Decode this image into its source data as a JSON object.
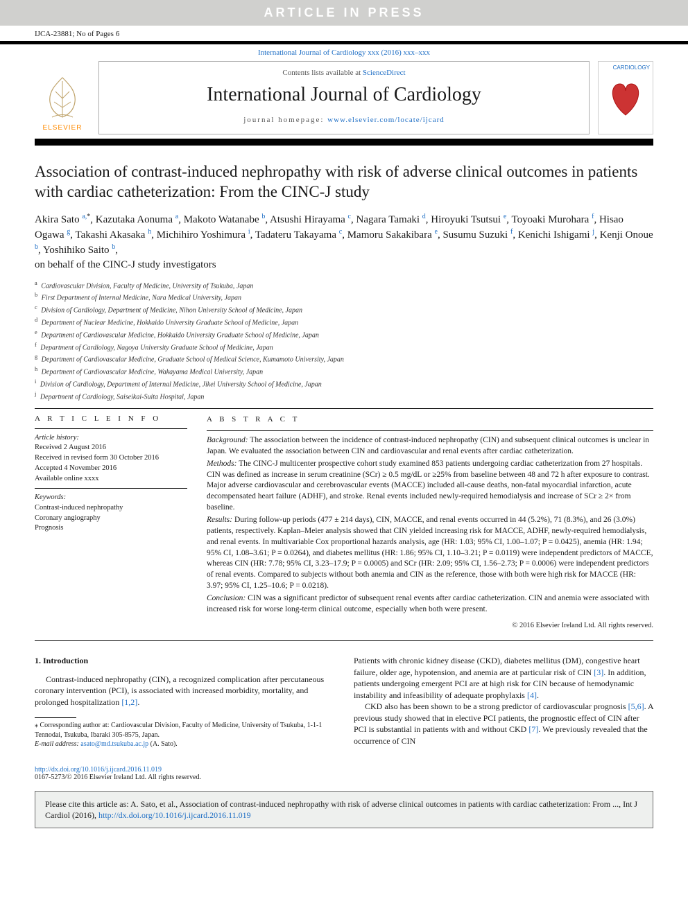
{
  "banner": "ARTICLE IN PRESS",
  "header_left": "IJCA-23881; No of Pages 6",
  "journal_ref_line": "International Journal of Cardiology xxx (2016) xxx–xxx",
  "masthead": {
    "contents_prefix": "Contents lists available at ",
    "contents_link": "ScienceDirect",
    "journal_title": "International Journal of Cardiology",
    "homepage_prefix": "journal homepage: ",
    "homepage_url": "www.elsevier.com/locate/ijcard",
    "publisher_logo_text": "ELSEVIER",
    "cover_label": "CARDIOLOGY"
  },
  "article": {
    "title": "Association of contrast-induced nephropathy with risk of adverse clinical outcomes in patients with cardiac catheterization: From the CINC-J study",
    "authors_html_parts": [
      {
        "name": "Akira Sato",
        "sup": "a,",
        "star": true
      },
      {
        "name": "Kazutaka Aonuma",
        "sup": "a"
      },
      {
        "name": "Makoto Watanabe",
        "sup": "b"
      },
      {
        "name": "Atsushi Hirayama",
        "sup": "c"
      },
      {
        "name": "Nagara Tamaki",
        "sup": "d"
      },
      {
        "name": "Hiroyuki Tsutsui",
        "sup": "e"
      },
      {
        "name": "Toyoaki Murohara",
        "sup": "f"
      },
      {
        "name": "Hisao Ogawa",
        "sup": "g"
      },
      {
        "name": "Takashi Akasaka",
        "sup": "h"
      },
      {
        "name": "Michihiro Yoshimura",
        "sup": "i"
      },
      {
        "name": "Tadateru Takayama",
        "sup": "c"
      },
      {
        "name": "Mamoru Sakakibara",
        "sup": "e"
      },
      {
        "name": "Susumu Suzuki",
        "sup": "f"
      },
      {
        "name": "Kenichi Ishigami",
        "sup": "j"
      },
      {
        "name": "Kenji Onoue",
        "sup": "b"
      },
      {
        "name": "Yoshihiko Saito",
        "sup": "b"
      }
    ],
    "authors_trailer": "on behalf of the CINC-J study investigators",
    "affiliations": [
      {
        "key": "a",
        "text": "Cardiovascular Division, Faculty of Medicine, University of Tsukuba, Japan"
      },
      {
        "key": "b",
        "text": "First Department of Internal Medicine, Nara Medical University, Japan"
      },
      {
        "key": "c",
        "text": "Division of Cardiology, Department of Medicine, Nihon University School of Medicine, Japan"
      },
      {
        "key": "d",
        "text": "Department of Nuclear Medicine, Hokkaido University Graduate School of Medicine, Japan"
      },
      {
        "key": "e",
        "text": "Department of Cardiovascular Medicine, Hokkaido University Graduate School of Medicine, Japan"
      },
      {
        "key": "f",
        "text": "Department of Cardiology, Nagoya University Graduate School of Medicine, Japan"
      },
      {
        "key": "g",
        "text": "Department of Cardiovascular Medicine, Graduate School of Medical Science, Kumamoto University, Japan"
      },
      {
        "key": "h",
        "text": "Department of Cardiovascular Medicine, Wakayama Medical University, Japan"
      },
      {
        "key": "i",
        "text": "Division of Cardiology, Department of Internal Medicine, Jikei University School of Medicine, Japan"
      },
      {
        "key": "j",
        "text": "Department of Cardiology, Saiseikai-Suita Hospital, Japan"
      }
    ]
  },
  "info": {
    "heading": "A R T I C L E  I N F O",
    "history_label": "Article history:",
    "history": [
      "Received 2 August 2016",
      "Received in revised form 30 October 2016",
      "Accepted 4 November 2016",
      "Available online xxxx"
    ],
    "keywords_label": "Keywords:",
    "keywords": [
      "Contrast-induced nephropathy",
      "Coronary angiography",
      "Prognosis"
    ]
  },
  "abstract": {
    "heading": "A B S T R A C T",
    "sections": [
      {
        "label": "Background:",
        "text": " The association between the incidence of contrast-induced nephropathy (CIN) and subsequent clinical outcomes is unclear in Japan. We evaluated the association between CIN and cardiovascular and renal events after cardiac catheterization."
      },
      {
        "label": "Methods:",
        "text": " The CINC-J multicenter prospective cohort study examined 853 patients undergoing cardiac catheterization from 27 hospitals. CIN was defined as increase in serum creatinine (SCr) ≥ 0.5 mg/dL or ≥25% from baseline between 48 and 72 h after exposure to contrast. Major adverse cardiovascular and cerebrovascular events (MACCE) included all-cause deaths, non-fatal myocardial infarction, acute decompensated heart failure (ADHF), and stroke. Renal events included newly-required hemodialysis and increase of SCr ≥ 2× from baseline."
      },
      {
        "label": "Results:",
        "text": " During follow-up periods (477 ± 214 days), CIN, MACCE, and renal events occurred in 44 (5.2%), 71 (8.3%), and 26 (3.0%) patients, respectively. Kaplan–Meier analysis showed that CIN yielded increasing risk for MACCE, ADHF, newly-required hemodialysis, and renal events. In multivariable Cox proportional hazards analysis, age (HR: 1.03; 95% CI, 1.00–1.07; P = 0.0425), anemia (HR: 1.94; 95% CI, 1.08–3.61; P = 0.0264), and diabetes mellitus (HR: 1.86; 95% CI, 1.10–3.21; P = 0.0119) were independent predictors of MACCE, whereas CIN (HR: 7.78; 95% CI, 3.23–17.9; P = 0.0005) and SCr (HR: 2.09; 95% CI, 1.56–2.73; P = 0.0006) were independent predictors of renal events. Compared to subjects without both anemia and CIN as the reference, those with both were high risk for MACCE (HR: 3.97; 95% CI, 1.25–10.6; P = 0.0218)."
      },
      {
        "label": "Conclusion:",
        "text": " CIN was a significant predictor of subsequent renal events after cardiac catheterization. CIN and anemia were associated with increased risk for worse long-term clinical outcome, especially when both were present."
      }
    ],
    "copyright": "© 2016 Elsevier Ireland Ltd. All rights reserved."
  },
  "body": {
    "section_number": "1.",
    "section_title": "Introduction",
    "left_para": "Contrast-induced nephropathy (CIN), a recognized complication after percutaneous coronary intervention (PCI), is associated with increased morbidity, mortality, and prolonged hospitalization ",
    "left_ref": "[1,2]",
    "left_tail": ".",
    "right_p1a": "Patients with chronic kidney disease (CKD), diabetes mellitus (DM), congestive heart failure, older age, hypotension, and anemia are at particular risk of CIN ",
    "right_ref1": "[3]",
    "right_p1b": ". In addition, patients undergoing emergent PCI are at high risk for CIN because of hemodynamic instability and infeasibility of adequate prophylaxis ",
    "right_ref2": "[4]",
    "right_p1c": ".",
    "right_p2a": "CKD also has been shown to be a strong predictor of cardiovascular prognosis ",
    "right_ref3": "[5,6]",
    "right_p2b": ". A previous study showed that in elective PCI patients, the prognostic effect of CIN after PCI is substantial in patients with and without CKD ",
    "right_ref4": "[7]",
    "right_p2c": ". We previously revealed that the occurrence of CIN"
  },
  "footnote": {
    "corr_label": "⁎ Corresponding author at: ",
    "corr_text": "Cardiovascular Division, Faculty of Medicine, University of Tsukuba, 1-1-1 Tennodai, Tsukuba, Ibaraki 305-8575, Japan.",
    "email_label": "E-mail address: ",
    "email": "asato@md.tsukuba.ac.jp",
    "email_tail": " (A. Sato)."
  },
  "doi": {
    "url": "http://dx.doi.org/10.1016/j.ijcard.2016.11.019",
    "issn_line": "0167-5273/© 2016 Elsevier Ireland Ltd. All rights reserved."
  },
  "citebox": {
    "prefix": "Please cite this article as: A. Sato, et al., Association of contrast-induced nephropathy with risk of adverse clinical outcomes in patients with cardiac catheterization: From ..., Int J Cardiol (2016), ",
    "url": "http://dx.doi.org/10.1016/j.ijcard.2016.11.019"
  },
  "colors": {
    "link": "#1f6fc5",
    "banner_bg": "#d0d0ce",
    "citebox_bg": "#eef0ee",
    "elsevier_orange": "#ff8a00"
  }
}
